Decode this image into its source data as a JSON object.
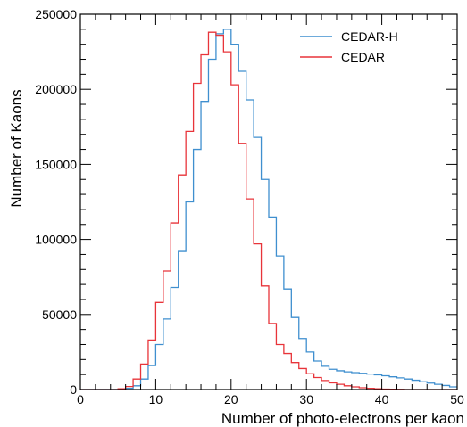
{
  "chart_data": {
    "type": "histogram",
    "title": "",
    "xlabel": "Number of photo-electrons per kaon",
    "ylabel": "Number of Kaons",
    "xlim": [
      0,
      50
    ],
    "ylim": [
      0,
      250000
    ],
    "x_ticks": [
      0,
      10,
      20,
      30,
      40,
      50
    ],
    "x_tick_labels": [
      "0",
      "10",
      "20",
      "30",
      "40",
      "50"
    ],
    "y_ticks": [
      0,
      50000,
      100000,
      150000,
      200000,
      250000
    ],
    "y_tick_labels": [
      "0",
      "50000",
      "100000",
      "150000",
      "200000",
      "250000"
    ],
    "bin_width": 1,
    "bin_edges_start": 0,
    "grid": false,
    "legend_position": "top-right",
    "series": [
      {
        "name": "CEDAR-H",
        "color": "#3f8fcf",
        "values": [
          0,
          0,
          0,
          0,
          0,
          0,
          800,
          2500,
          7000,
          16000,
          30000,
          47000,
          68000,
          92000,
          125000,
          160000,
          192000,
          220000,
          237000,
          240000,
          230000,
          212000,
          193000,
          168000,
          140000,
          115000,
          89000,
          67000,
          48000,
          34000,
          25000,
          19000,
          15500,
          13500,
          12500,
          11800,
          11300,
          10800,
          10300,
          9800,
          9200,
          8500,
          7800,
          7000,
          6200,
          5200,
          4300,
          3500,
          2700,
          1800
        ]
      },
      {
        "name": "CEDAR",
        "color": "#e8343a",
        "values": [
          0,
          0,
          0,
          0,
          0,
          500,
          2000,
          7000,
          17000,
          33000,
          58000,
          79000,
          111000,
          143000,
          172000,
          204000,
          223000,
          238000,
          236000,
          225000,
          203000,
          164000,
          127000,
          97000,
          69000,
          44000,
          30000,
          24000,
          18000,
          14000,
          10500,
          8000,
          6000,
          4500,
          3500,
          2500,
          1800,
          1200,
          800,
          500,
          300,
          200,
          100,
          0,
          0,
          0,
          0,
          0,
          0,
          0
        ]
      }
    ]
  }
}
